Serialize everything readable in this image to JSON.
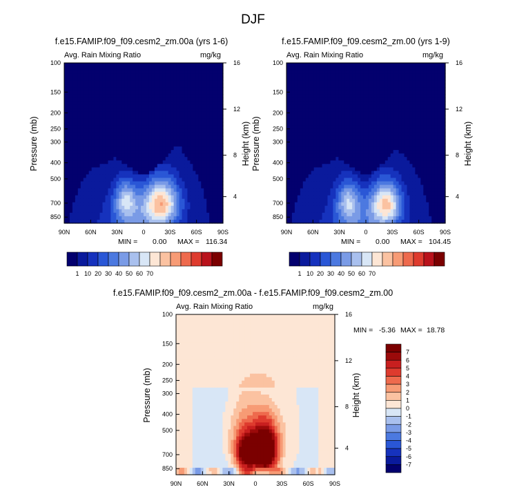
{
  "figure": {
    "title": "DJF"
  },
  "palettes": {
    "abs": [
      "#03006e",
      "#0a1a9c",
      "#1632bd",
      "#2a57d6",
      "#4c79e0",
      "#7a9be6",
      "#a9c0ee",
      "#d8e6f6",
      "#fde6d5",
      "#fbc2a1",
      "#f79b75",
      "#ee6a4d",
      "#de3b2e",
      "#b9121b",
      "#7b0000"
    ],
    "diff": [
      "#03006e",
      "#0a1a9c",
      "#1632bd",
      "#2a57d6",
      "#4c79e0",
      "#7a9be6",
      "#a9c0ee",
      "#d8e6f6",
      "#fde6d5",
      "#fbc2a1",
      "#f79b75",
      "#ee6a4d",
      "#de3b2e",
      "#c81f1f",
      "#9b0a0a",
      "#7b0000"
    ]
  },
  "chart_data": [
    {
      "type": "heatmap",
      "title": "f.e15.FAMIP.f09_f09.cesm2_zm.00a (yrs 1-6)",
      "left_label": "Avg. Rain Mixing Ratio",
      "right_label": "mg/kg",
      "xlabel": "",
      "ylabel": "Pressure (mb)",
      "ylabel_right": "Height (km)",
      "x_ticks": [
        "90N",
        "60N",
        "30N",
        "0",
        "30S",
        "60S",
        "90S"
      ],
      "y_ticks": [
        "100",
        "150",
        "200",
        "250",
        "300",
        "400",
        "500",
        "700",
        "850"
      ],
      "y_ticks_right": [
        "16",
        "12",
        "8",
        "4"
      ],
      "min_label": "MIN =",
      "min_value": "0.00",
      "max_label": "MAX =",
      "max_value": "116.34",
      "colorbar": {
        "levels": [
          "1",
          "10",
          "20",
          "30",
          "40",
          "50",
          "60",
          "70"
        ]
      },
      "max_number": 116.34,
      "blobs": [
        {
          "lat": -20,
          "p": 700,
          "amp": 1.0,
          "slat": 14,
          "sp": 150
        },
        {
          "lat": 20,
          "p": 680,
          "amp": 0.62,
          "slat": 9,
          "sp": 130
        }
      ]
    },
    {
      "type": "heatmap",
      "title": "f.e15.FAMIP.f09_f09.cesm2_zm.00 (yrs 1-9)",
      "left_label": "Avg. Rain Mixing Ratio",
      "right_label": "mg/kg",
      "xlabel": "",
      "ylabel": "Pressure (mb)",
      "ylabel_right": "Height (km)",
      "x_ticks": [
        "90N",
        "60N",
        "30N",
        "0",
        "30S",
        "60S",
        "90S"
      ],
      "y_ticks": [
        "100",
        "150",
        "200",
        "250",
        "300",
        "400",
        "500",
        "700",
        "850"
      ],
      "y_ticks_right": [
        "16",
        "12",
        "8",
        "4"
      ],
      "min_label": "MIN =",
      "min_value": "0.00",
      "max_label": "MAX =",
      "max_value": "104.45",
      "colorbar": {
        "levels": [
          "1",
          "10",
          "20",
          "30",
          "40",
          "50",
          "60",
          "70"
        ]
      },
      "max_number": 104.45,
      "blobs": [
        {
          "lat": -23,
          "p": 710,
          "amp": 0.95,
          "slat": 12,
          "sp": 140
        },
        {
          "lat": 20,
          "p": 690,
          "amp": 0.58,
          "slat": 9,
          "sp": 130
        }
      ]
    },
    {
      "type": "heatmap",
      "title": "f.e15.FAMIP.f09_f09.cesm2_zm.00a - f.e15.FAMIP.f09_f09.cesm2_zm.00",
      "left_label": "Avg. Rain Mixing Ratio",
      "right_label": "mg/kg",
      "xlabel": "",
      "ylabel": "Pressure (mb)",
      "ylabel_right": "Height (km)",
      "x_ticks": [
        "90N",
        "60N",
        "30N",
        "0",
        "30S",
        "60S",
        "90S"
      ],
      "y_ticks": [
        "100",
        "150",
        "200",
        "250",
        "300",
        "400",
        "500",
        "700",
        "850"
      ],
      "y_ticks_right": [
        "16",
        "12",
        "8",
        "4"
      ],
      "min_label": "MIN =",
      "min_value": "-5.36",
      "max_label": "MAX =",
      "max_value": "18.78",
      "colorbar": {
        "levels": [
          "7",
          "6",
          "5",
          "4",
          "3",
          "2",
          "1",
          "0",
          "-1",
          "-2",
          "-3",
          "-4",
          "-5",
          "-6",
          "-7"
        ]
      },
      "max_number": 18.78,
      "min_number": -5.36
    }
  ]
}
